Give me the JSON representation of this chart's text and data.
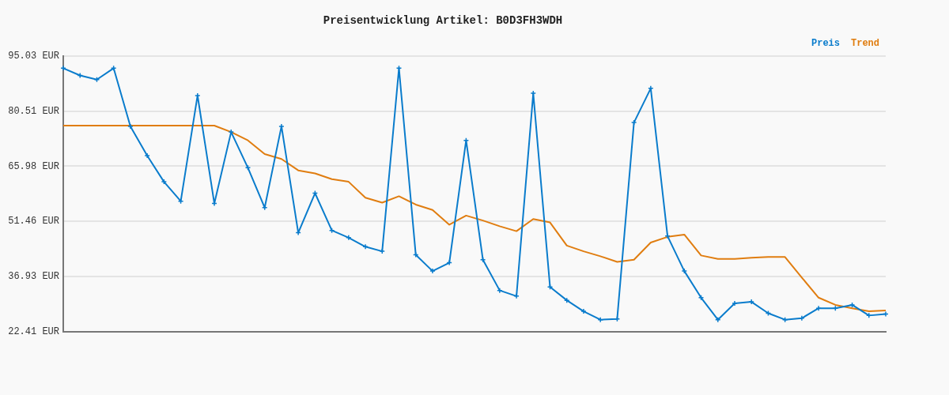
{
  "chart_data": {
    "type": "line",
    "title": "Preisentwicklung Artikel: B0D3FH3WDH",
    "categories": [
      null,
      null,
      null,
      null,
      null,
      null,
      null,
      null,
      null,
      null,
      null,
      null,
      null,
      null,
      null,
      null,
      null,
      null,
      null,
      null,
      null,
      null,
      null,
      null,
      null,
      null,
      null,
      null,
      null,
      null,
      null,
      null,
      null,
      null,
      null,
      null,
      null,
      null,
      null,
      null,
      null,
      null,
      null,
      null,
      null,
      null,
      null,
      null,
      null,
      null
    ],
    "series": [
      {
        "name": "Preis",
        "color": "#0a7ccc",
        "marker": "cross",
        "values": [
          91.8,
          89.9,
          88.8,
          91.8,
          76.5,
          68.8,
          61.9,
          56.8,
          84.6,
          56.2,
          75.0,
          65.6,
          55.1,
          76.5,
          48.5,
          58.9,
          49.1,
          47.2,
          44.8,
          43.6,
          91.8,
          42.7,
          38.4,
          40.6,
          72.8,
          41.4,
          33.3,
          31.8,
          85.2,
          34.2,
          30.7,
          27.8,
          25.6,
          25.8,
          77.5,
          86.5,
          47.6,
          38.4,
          31.4,
          25.6,
          29.9,
          30.3,
          27.3,
          25.6,
          26.0,
          28.6,
          28.6,
          29.5,
          26.7,
          27.1
        ]
      },
      {
        "name": "Trend",
        "color": "#e07d10",
        "values": [
          76.7,
          76.7,
          76.7,
          76.7,
          76.7,
          76.7,
          76.7,
          76.7,
          76.7,
          76.7,
          75.0,
          72.8,
          69.2,
          67.9,
          64.9,
          64.1,
          62.6,
          61.9,
          57.7,
          56.4,
          58.1,
          55.9,
          54.5,
          50.6,
          53.0,
          51.7,
          50.2,
          48.9,
          52.1,
          51.2,
          45.1,
          43.6,
          42.3,
          40.8,
          41.4,
          45.9,
          47.4,
          48.0,
          42.5,
          41.6,
          41.6,
          41.9,
          42.1,
          42.1,
          36.7,
          31.4,
          29.5,
          28.6,
          27.8,
          28.0
        ]
      }
    ],
    "ylim": [
      22.41,
      95.03
    ],
    "yticks": [
      {
        "value": 22.41,
        "label": "22.41 EUR"
      },
      {
        "value": 36.93,
        "label": "36.93 EUR"
      },
      {
        "value": 51.46,
        "label": "51.46 EUR"
      },
      {
        "value": 65.98,
        "label": "65.98 EUR"
      },
      {
        "value": 80.51,
        "label": "80.51 EUR"
      },
      {
        "value": 95.03,
        "label": "95.03 EUR"
      }
    ],
    "grid": "y",
    "legend": "top right"
  }
}
